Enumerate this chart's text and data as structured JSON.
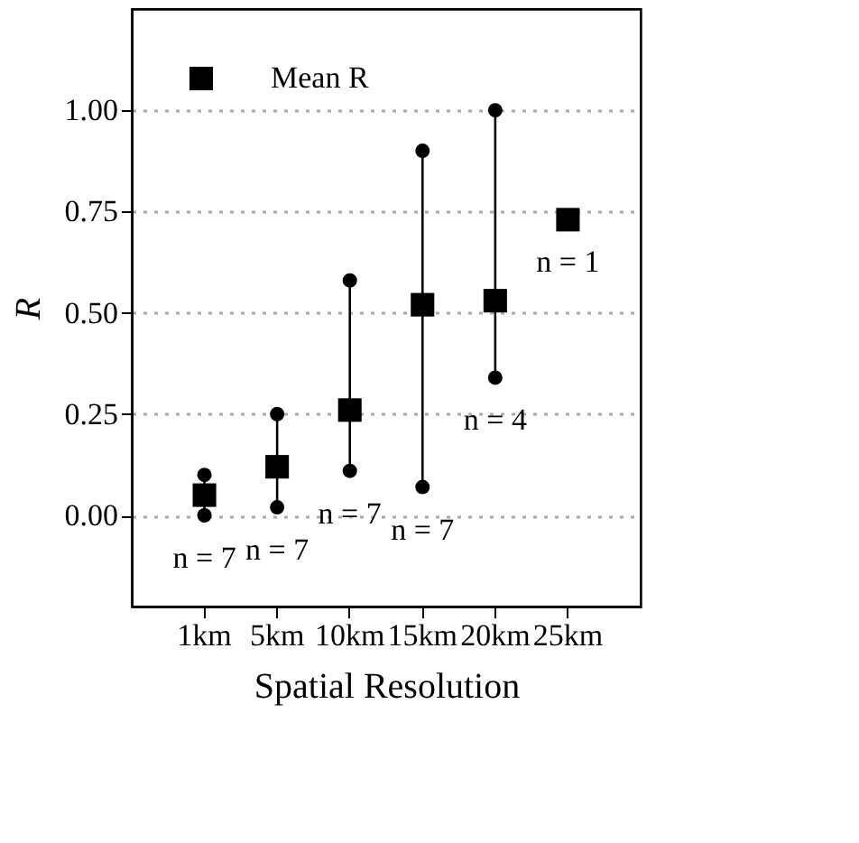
{
  "chart_data": {
    "type": "scatter",
    "xlabel": "Spatial Resolution",
    "ylabel": "R",
    "categories": [
      "1km",
      "5km",
      "10km",
      "15km",
      "20km",
      "25km"
    ],
    "series": [
      {
        "name": "Mean R",
        "color": "#000000",
        "marker": "square",
        "values": [
          0.05,
          0.12,
          0.26,
          0.52,
          0.53,
          0.73
        ],
        "errors": [
          [
            0.0,
            0.1
          ],
          [
            0.02,
            0.25
          ],
          [
            0.11,
            0.58
          ],
          [
            0.07,
            0.9
          ],
          [
            0.34,
            1.0
          ],
          null
        ]
      }
    ],
    "ylim": [
      -0.225,
      1.25
    ],
    "yticks": [
      {
        "value": 0,
        "label": "0.00"
      },
      {
        "value": 0.25,
        "label": "0.25"
      },
      {
        "value": 0.5,
        "label": "0.50"
      },
      {
        "value": 0.75,
        "label": "0.75"
      },
      {
        "value": 1,
        "label": "1.00"
      }
    ],
    "grid": "y",
    "legend": "top left",
    "annotations": [
      "n = 7",
      "n = 7",
      "n = 7",
      "n = 7",
      "n = 4",
      "n = 1"
    ]
  }
}
